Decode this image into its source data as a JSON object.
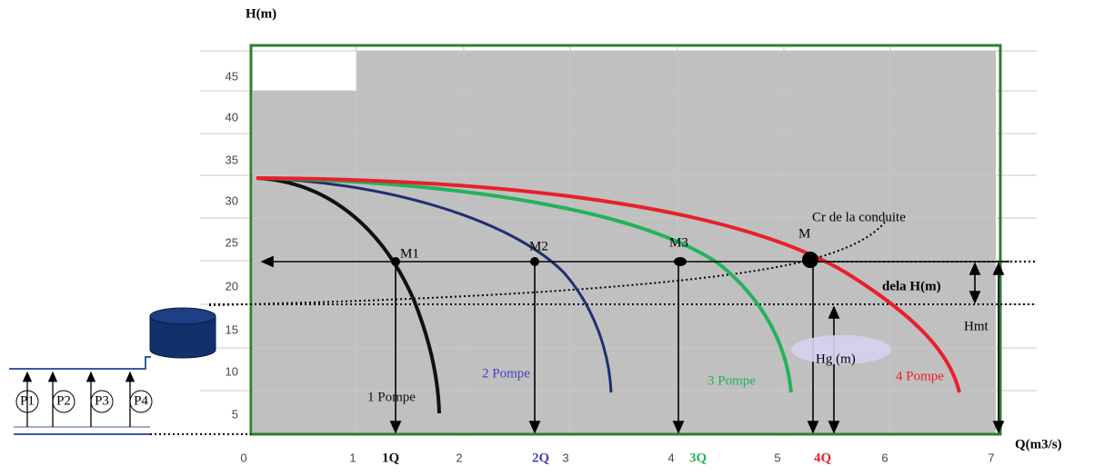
{
  "axes": {
    "y_title": "H(m)",
    "x_title": "Q(m3/s)",
    "y_ticks": [
      "45",
      "40",
      "35",
      "30",
      "25",
      "20",
      "15",
      "10",
      "5"
    ],
    "x_ticks": [
      "0",
      "1",
      "2",
      "3",
      "4",
      "5",
      "6",
      "7"
    ]
  },
  "flow_labels": [
    "1Q",
    "2Q",
    "3Q",
    "4Q"
  ],
  "curves": [
    "1 Pompe",
    "2 Pompe",
    "3 Pompe",
    "4 Pompe"
  ],
  "points": [
    "M1",
    "M2",
    "M3",
    "M"
  ],
  "annotations": {
    "pipe_curve": "Cr de la conduite",
    "delta_h": "dela H(m)",
    "hmt": "Hmt",
    "hg": "Hg (m)"
  },
  "pumps": [
    "P1",
    "P2",
    "P3",
    "P4"
  ]
}
